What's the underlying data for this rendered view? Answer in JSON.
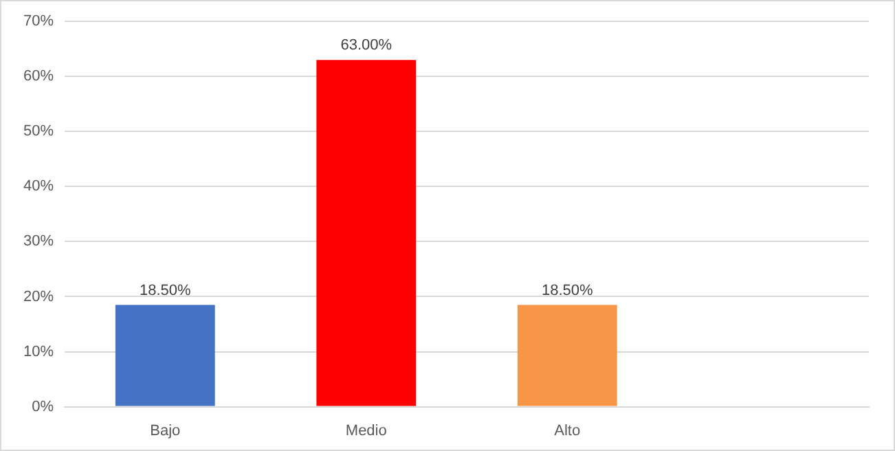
{
  "chart_data": {
    "type": "bar",
    "categories": [
      "Bajo",
      "Medio",
      "Alto",
      null
    ],
    "values": [
      18.5,
      63,
      18.5,
      null
    ],
    "colors": [
      "#4472c4",
      "#ff0000",
      "#f79646",
      null
    ],
    "value_labels": [
      "18.50%",
      "63.00%",
      "18.50%",
      null
    ],
    "ylim": [
      0,
      70
    ],
    "yticks": [
      {
        "value": 0,
        "label": "0%"
      },
      {
        "value": 10,
        "label": "10%"
      },
      {
        "value": 20,
        "label": "20%"
      },
      {
        "value": 30,
        "label": "30%"
      },
      {
        "value": 40,
        "label": "40%"
      },
      {
        "value": 50,
        "label": "50%"
      },
      {
        "value": 60,
        "label": "60%"
      },
      {
        "value": 70,
        "label": "70%"
      }
    ],
    "grid": "y",
    "legend": false
  }
}
